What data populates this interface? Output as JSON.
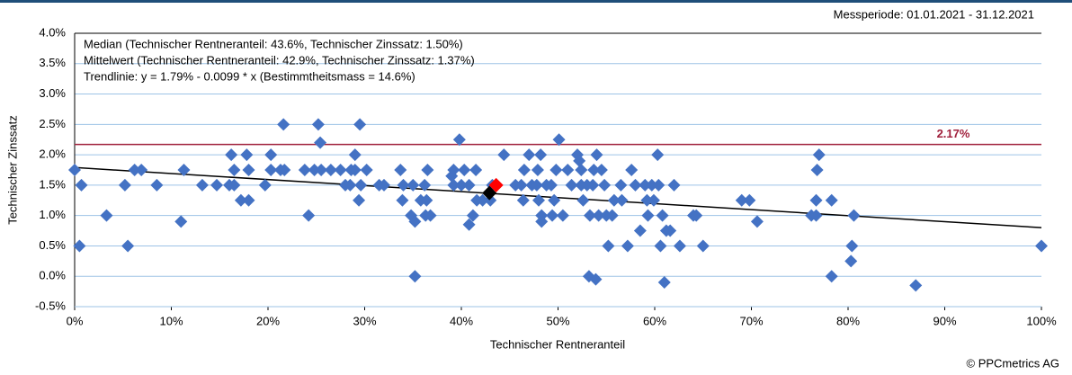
{
  "chart_data": {
    "type": "scatter",
    "subtitle": "Messperiode: 01.01.2021 - 31.12.2021",
    "xlabel": "Technischer Rentneranteil",
    "ylabel": "Technischer Zinssatz",
    "credit": "© PPCmetrics AG",
    "annotations": [
      "Median (Technischer Rentneranteil: 43.6%, Technischer Zinssatz: 1.50%)",
      "Mittelwert (Technischer Rentneranteil: 42.9%, Technischer Zinssatz: 1.37%)",
      "Trendlinie: y = 1.79% - 0.0099 * x (Bestimmtheitsmass = 14.6%)"
    ],
    "color": "#4472c4",
    "x": [
      0,
      0.7,
      0.5,
      3.3,
      5.2,
      5.5,
      6.2,
      6.9,
      8.5,
      11,
      11.3,
      13.2,
      14.7,
      16.2,
      16,
      16.5,
      16.5,
      17.2,
      17.8,
      18,
      18,
      19.7,
      20.3,
      20.3,
      21.3,
      21.7,
      21.6,
      23.8,
      24.2,
      24.8,
      25.2,
      25.4,
      25.5,
      26.5,
      27.5,
      28,
      28.5,
      28.6,
      29,
      29,
      29.5,
      29.4,
      29.6,
      30.2,
      31.5,
      32,
      33.7,
      33.9,
      34,
      34.8,
      35,
      35.2,
      35.2,
      35.8,
      36.2,
      36.4,
      36.5,
      36.3,
      36.8,
      39.2,
      39.2,
      39,
      39.8,
      40,
      40.3,
      40.8,
      40.8,
      41.2,
      41.5,
      41.6,
      42.2,
      43,
      43.2,
      44.4,
      45.6,
      46.2,
      46.4,
      46.5,
      47,
      47.3,
      47.8,
      47.9,
      48,
      48.2,
      48.3,
      48.3,
      48.8,
      49.3,
      49.4,
      49.6,
      49.8,
      50.1,
      50.5,
      51,
      51.4,
      52,
      52.2,
      52.4,
      52.6,
      52.4,
      53,
      53.2,
      53.3,
      53.6,
      53.7,
      54,
      53.9,
      54.2,
      54.5,
      54.8,
      55,
      55.2,
      55.6,
      55.8,
      56.5,
      56.6,
      57.2,
      57.6,
      58,
      58.5,
      59,
      59.2,
      59.3,
      59.7,
      59.9,
      60.3,
      60.4,
      60.6,
      60.8,
      61,
      61.2,
      61.6,
      62,
      62.6,
      64,
      64.3,
      65,
      69,
      69.8,
      70.6,
      76.2,
      76.7,
      76.7,
      76.8,
      77,
      78.3,
      78.3,
      80.3,
      80.4,
      80.6,
      87,
      100
    ],
    "values": [
      1.75,
      1.5,
      0.5,
      1.0,
      1.5,
      0.5,
      1.75,
      1.75,
      1.5,
      0.9,
      1.75,
      1.5,
      1.5,
      2.0,
      1.5,
      1.5,
      1.75,
      1.25,
      2.0,
      1.75,
      1.25,
      1.5,
      2.0,
      1.75,
      1.75,
      1.75,
      2.5,
      1.75,
      1.0,
      1.75,
      2.5,
      2.2,
      1.75,
      1.75,
      1.75,
      1.5,
      1.5,
      1.75,
      1.75,
      2.0,
      2.5,
      1.25,
      1.5,
      1.75,
      1.5,
      1.5,
      1.75,
      1.25,
      1.5,
      1.0,
      1.5,
      0.9,
      0.0,
      1.25,
      1.5,
      1.25,
      1.75,
      1.0,
      1.0,
      1.75,
      1.5,
      1.65,
      2.25,
      1.5,
      1.75,
      1.5,
      0.85,
      1.0,
      1.75,
      1.25,
      1.25,
      1.25,
      1.5,
      2.0,
      1.5,
      1.5,
      1.25,
      1.75,
      2.0,
      1.5,
      1.5,
      1.75,
      1.25,
      2.0,
      1.0,
      0.9,
      1.5,
      1.5,
      1.0,
      1.25,
      1.75,
      2.25,
      1.0,
      1.75,
      1.5,
      2.0,
      1.9,
      1.75,
      1.25,
      1.5,
      1.5,
      0.0,
      1.0,
      1.5,
      1.75,
      2.0,
      -0.05,
      1.0,
      1.75,
      1.5,
      1.0,
      0.5,
      1.0,
      1.25,
      1.5,
      1.25,
      0.5,
      1.75,
      1.5,
      0.75,
      1.5,
      1.25,
      1.0,
      1.5,
      1.25,
      2.0,
      1.5,
      0.5,
      1.0,
      -0.1,
      0.75,
      0.75,
      1.5,
      0.5,
      1.0,
      1.0,
      0.5,
      1.25,
      1.25,
      0.9,
      1.0,
      1.0,
      1.25,
      1.75,
      2.0,
      1.25,
      0.0,
      0.25,
      0.5,
      1.0,
      -0.15,
      0.5
    ],
    "median": {
      "x": 43.6,
      "y": 1.5,
      "color": "#ff0000"
    },
    "mean": {
      "x": 42.9,
      "y": 1.37,
      "color": "#000000"
    },
    "trendline": {
      "intercept": 1.79,
      "slope": -0.0099,
      "color": "#000000"
    },
    "reference_line": {
      "value": 2.17,
      "label": "2.17%",
      "color": "#a0203c"
    },
    "xlim": [
      0,
      100
    ],
    "xticks": [
      {
        "value": 0,
        "label": "0%"
      },
      {
        "value": 10,
        "label": "10%"
      },
      {
        "value": 20,
        "label": "20%"
      },
      {
        "value": 30,
        "label": "30%"
      },
      {
        "value": 40,
        "label": "40%"
      },
      {
        "value": 50,
        "label": "50%"
      },
      {
        "value": 60,
        "label": "60%"
      },
      {
        "value": 70,
        "label": "70%"
      },
      {
        "value": 80,
        "label": "80%"
      },
      {
        "value": 90,
        "label": "90%"
      },
      {
        "value": 100,
        "label": "100%"
      }
    ],
    "ylim": [
      -0.5,
      4
    ],
    "yticks": [
      {
        "value": -0.5,
        "label": "-0.5%"
      },
      {
        "value": 0,
        "label": "0.0%"
      },
      {
        "value": 0.5,
        "label": "0.5%"
      },
      {
        "value": 1,
        "label": "1.0%"
      },
      {
        "value": 1.5,
        "label": "1.5%"
      },
      {
        "value": 2,
        "label": "2.0%"
      },
      {
        "value": 2.5,
        "label": "2.5%"
      },
      {
        "value": 3,
        "label": "3.0%"
      },
      {
        "value": 3.5,
        "label": "3.5%"
      },
      {
        "value": 4,
        "label": "4.0%"
      }
    ],
    "grid": true
  }
}
